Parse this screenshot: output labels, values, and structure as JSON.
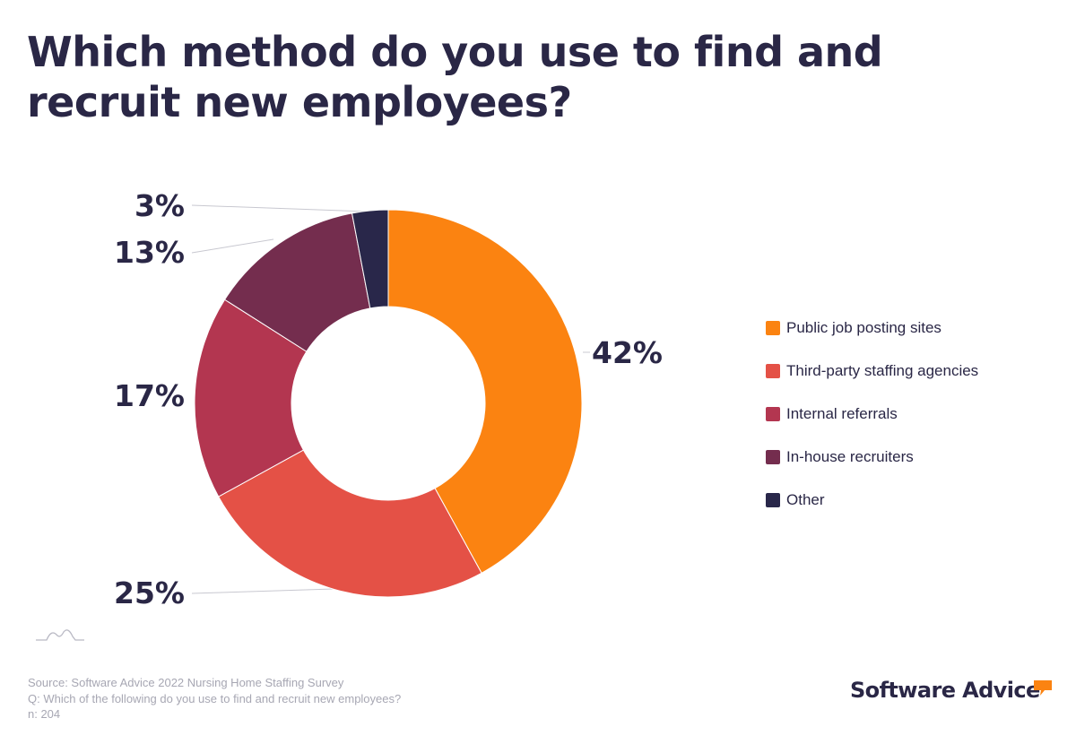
{
  "title": "Which method do you use to find and recruit new employees?",
  "chart_data": {
    "type": "pie",
    "donut": true,
    "title": "Which method do you use to find and recruit new employees?",
    "unit": "%",
    "slices": [
      {
        "label": "Public job posting sites",
        "value": 42,
        "display": "42%",
        "color": "#fb8311"
      },
      {
        "label": "Third-party staffing agencies",
        "value": 25,
        "display": "25%",
        "color": "#e45146"
      },
      {
        "label": "Internal referrals",
        "value": 17,
        "display": "17%",
        "color": "#b33650"
      },
      {
        "label": "In-house recruiters",
        "value": 13,
        "display": "13%",
        "color": "#742d4e"
      },
      {
        "label": "Other",
        "value": 3,
        "display": "3%",
        "color": "#29274a"
      }
    ],
    "legend_position": "right"
  },
  "footer": {
    "source": "Source: Software Advice 2022 Nursing Home Staffing Survey",
    "question": "Q: Which of the following do you use to find and recruit new employees?",
    "n": "n: 204"
  },
  "brand": {
    "name": "Software Advice",
    "accent": "#fb8311"
  }
}
